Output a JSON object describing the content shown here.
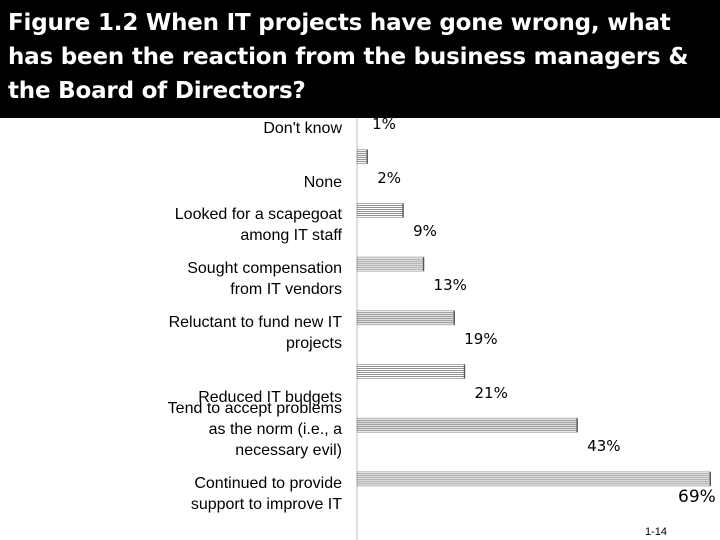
{
  "title": "Figure 1.2 When IT projects have gone wrong, what has been the reaction from the business managers & the Board of Directors?",
  "slide_number": "1-14",
  "colors": {
    "title_bg": "#000000",
    "title_fg": "#ffffff",
    "bar_stripe": "#6d6d6d"
  },
  "chart_data": {
    "type": "bar",
    "orientation": "horizontal",
    "title": "Figure 1.2 When IT projects have gone wrong, what has been the reaction from the business managers & the Board of Directors?",
    "categories": [
      "Don't know",
      "None",
      "Looked for a scapegoat among IT staff",
      "Sought compensation from IT vendors",
      "Reluctant to fund new IT projects",
      "Reduced IT budgets",
      "Tend to accept problems as the norm (i.e., a necessary evil)",
      "Continued to provide support to improve IT"
    ],
    "values": [
      1,
      2,
      9,
      13,
      19,
      21,
      43,
      69
    ],
    "value_labels": [
      "1%",
      "2%",
      "9%",
      "13%",
      "19%",
      "21%",
      "43%",
      "69%"
    ],
    "xlabel": "",
    "ylabel": "",
    "grid": false
  }
}
